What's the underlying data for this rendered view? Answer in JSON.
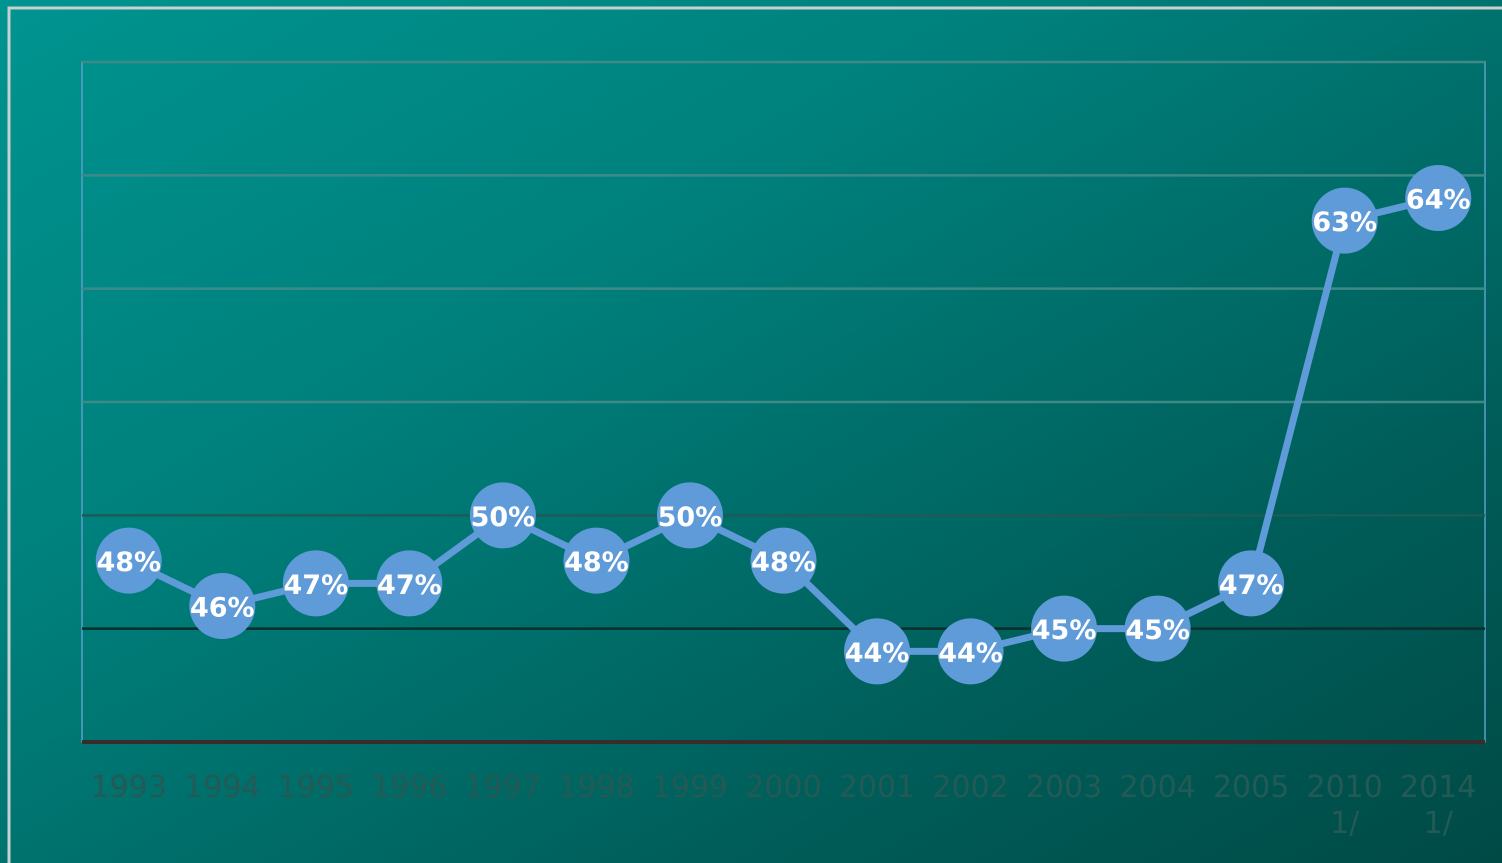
{
  "chart_data": {
    "type": "line",
    "categories": [
      "1993",
      "1994",
      "1995",
      "1996",
      "1997",
      "1998",
      "1999",
      "2000",
      "2001",
      "2002",
      "2003",
      "2004",
      "2005",
      "2010\n1/",
      "2014\n1/"
    ],
    "series": [
      {
        "color": "#5f9bd8",
        "values": [
          48,
          46,
          47,
          47,
          50,
          48,
          50,
          48,
          44,
          44,
          45,
          45,
          47,
          63,
          64
        ],
        "value_labels": [
          "48%",
          "46%",
          "47%",
          "47%",
          "50%",
          "48%",
          "50%",
          "48%",
          "44%",
          "44%",
          "45%",
          "45%",
          "47%",
          "63%",
          "64%"
        ]
      }
    ],
    "ylim": [
      40,
      70
    ],
    "yticks": [
      40,
      45,
      50,
      55,
      60,
      65,
      70
    ],
    "grid": true
  }
}
